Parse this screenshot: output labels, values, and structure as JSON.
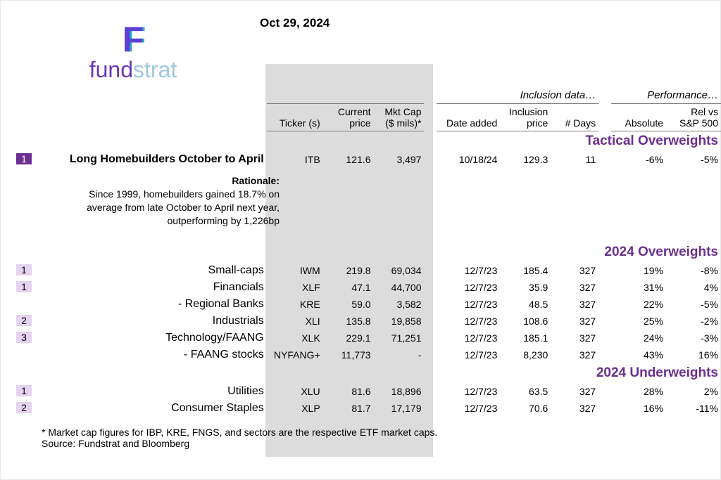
{
  "date": "Oct 29, 2024",
  "logo": {
    "word1": "fund",
    "word2": "strat",
    "mark": "F"
  },
  "groupHeaders": {
    "inclusion": "Inclusion data…",
    "performance": "Performance…"
  },
  "columns": {
    "ticker": "Ticker (s)",
    "currentPrice": "Current\nprice",
    "mktCap": "Mkt Cap\n($ mils)*",
    "dateAdded": "Date added",
    "inclusionPrice": "Inclusion\nprice",
    "days": "# Days",
    "absolute": "Absolute",
    "relVs": "Rel vs\nS&P 500"
  },
  "sections": [
    {
      "title": "Tactical Overweights",
      "rows": [
        {
          "num": "1",
          "numDark": true,
          "name": "Long Homebuilders October to April",
          "bold": true,
          "ticker": "ITB",
          "cp": "121.6",
          "mc": "3,497",
          "da": "10/18/24",
          "ip": "129.3",
          "days": "11",
          "abs": "-6%",
          "rel": "-5%",
          "rationaleTitle": "Rationale:",
          "rationale": "Since 1999, homebuilders gained 18.7% on average from late October to April next year, outperforming by 1,226bp"
        }
      ]
    },
    {
      "title": "2024 Overweights",
      "rows": [
        {
          "num": "1",
          "name": "Small-caps",
          "ticker": "IWM",
          "cp": "219.8",
          "mc": "69,034",
          "da": "12/7/23",
          "ip": "185.4",
          "days": "327",
          "abs": "19%",
          "rel": "-8%"
        },
        {
          "num": "1",
          "name": "Financials",
          "ticker": "XLF",
          "cp": "47.1",
          "mc": "44,700",
          "da": "12/7/23",
          "ip": "35.9",
          "days": "327",
          "abs": "31%",
          "rel": "4%"
        },
        {
          "sub": true,
          "name": "- Regional Banks",
          "ticker": "KRE",
          "cp": "59.0",
          "mc": "3,582",
          "da": "12/7/23",
          "ip": "48.5",
          "days": "327",
          "abs": "22%",
          "rel": "-5%"
        },
        {
          "num": "2",
          "name": "Industrials",
          "ticker": "XLI",
          "cp": "135.8",
          "mc": "19,858",
          "da": "12/7/23",
          "ip": "108.6",
          "days": "327",
          "abs": "25%",
          "rel": "-2%"
        },
        {
          "num": "3",
          "name": "Technology/FAANG",
          "ticker": "XLK",
          "cp": "229.1",
          "mc": "71,251",
          "da": "12/7/23",
          "ip": "185.1",
          "days": "327",
          "abs": "24%",
          "rel": "-3%"
        },
        {
          "sub": true,
          "name": "- FAANG stocks",
          "ticker": "NYFANG+",
          "cp": "11,773",
          "mc": "-",
          "da": "12/7/23",
          "ip": "8,230",
          "days": "327",
          "abs": "43%",
          "rel": "16%"
        }
      ]
    },
    {
      "title": "2024 Underweights",
      "rows": [
        {
          "num": "1",
          "name": "Utilities",
          "ticker": "XLU",
          "cp": "81.6",
          "mc": "18,896",
          "da": "12/7/23",
          "ip": "63.5",
          "days": "327",
          "abs": "28%",
          "rel": "2%"
        },
        {
          "num": "2",
          "name": "Consumer Staples",
          "ticker": "XLP",
          "cp": "81.7",
          "mc": "17,179",
          "da": "12/7/23",
          "ip": "70.6",
          "days": "327",
          "abs": "16%",
          "rel": "-11%"
        }
      ]
    }
  ],
  "footnote1": "* Market cap figures for IBP, KRE, FNGS, and sectors are the respective ETF market caps.",
  "footnote2": "Source: Fundstrat and Bloomberg"
}
